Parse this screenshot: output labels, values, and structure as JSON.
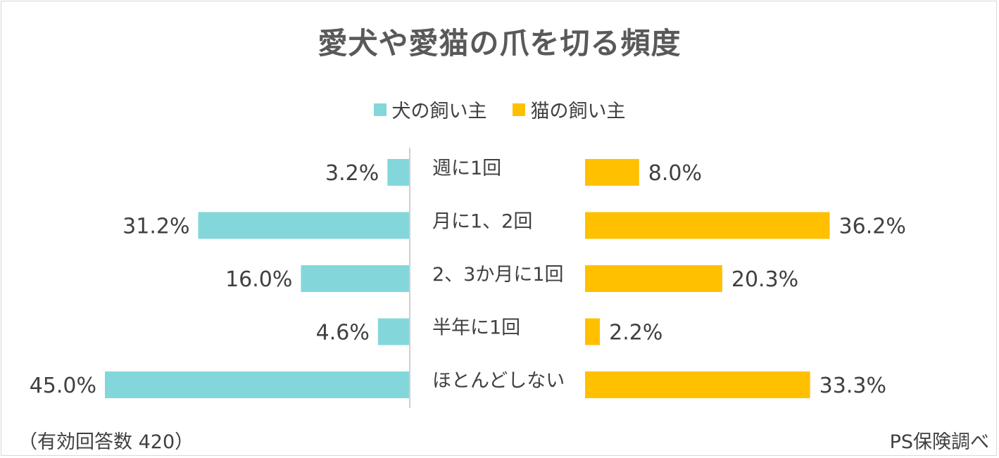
{
  "chart_data": {
    "type": "bar",
    "title": "愛犬や愛猫の爪を切る頻度",
    "categories": [
      "週に1回",
      "月に1、2回",
      "2、3か月に1回",
      "半年に1回",
      "ほとんどしない"
    ],
    "series": [
      {
        "name": "犬の飼い主",
        "color": "#83d7da",
        "values": [
          3.2,
          31.2,
          16.0,
          4.6,
          45.0
        ],
        "labels": [
          "3.2%",
          "31.2%",
          "16.0%",
          "4.6%",
          "45.0%"
        ]
      },
      {
        "name": "猫の飼い主",
        "color": "#ffc000",
        "values": [
          8.0,
          36.2,
          20.3,
          2.2,
          33.3
        ],
        "labels": [
          "8.0%",
          "36.2%",
          "20.3%",
          "2.2%",
          "33.3%"
        ]
      }
    ],
    "xlim": [
      0,
      50
    ],
    "unit": "%",
    "legend_position": "top-center",
    "note": "（有効回答数 420）",
    "source": "PS保険調べ"
  }
}
